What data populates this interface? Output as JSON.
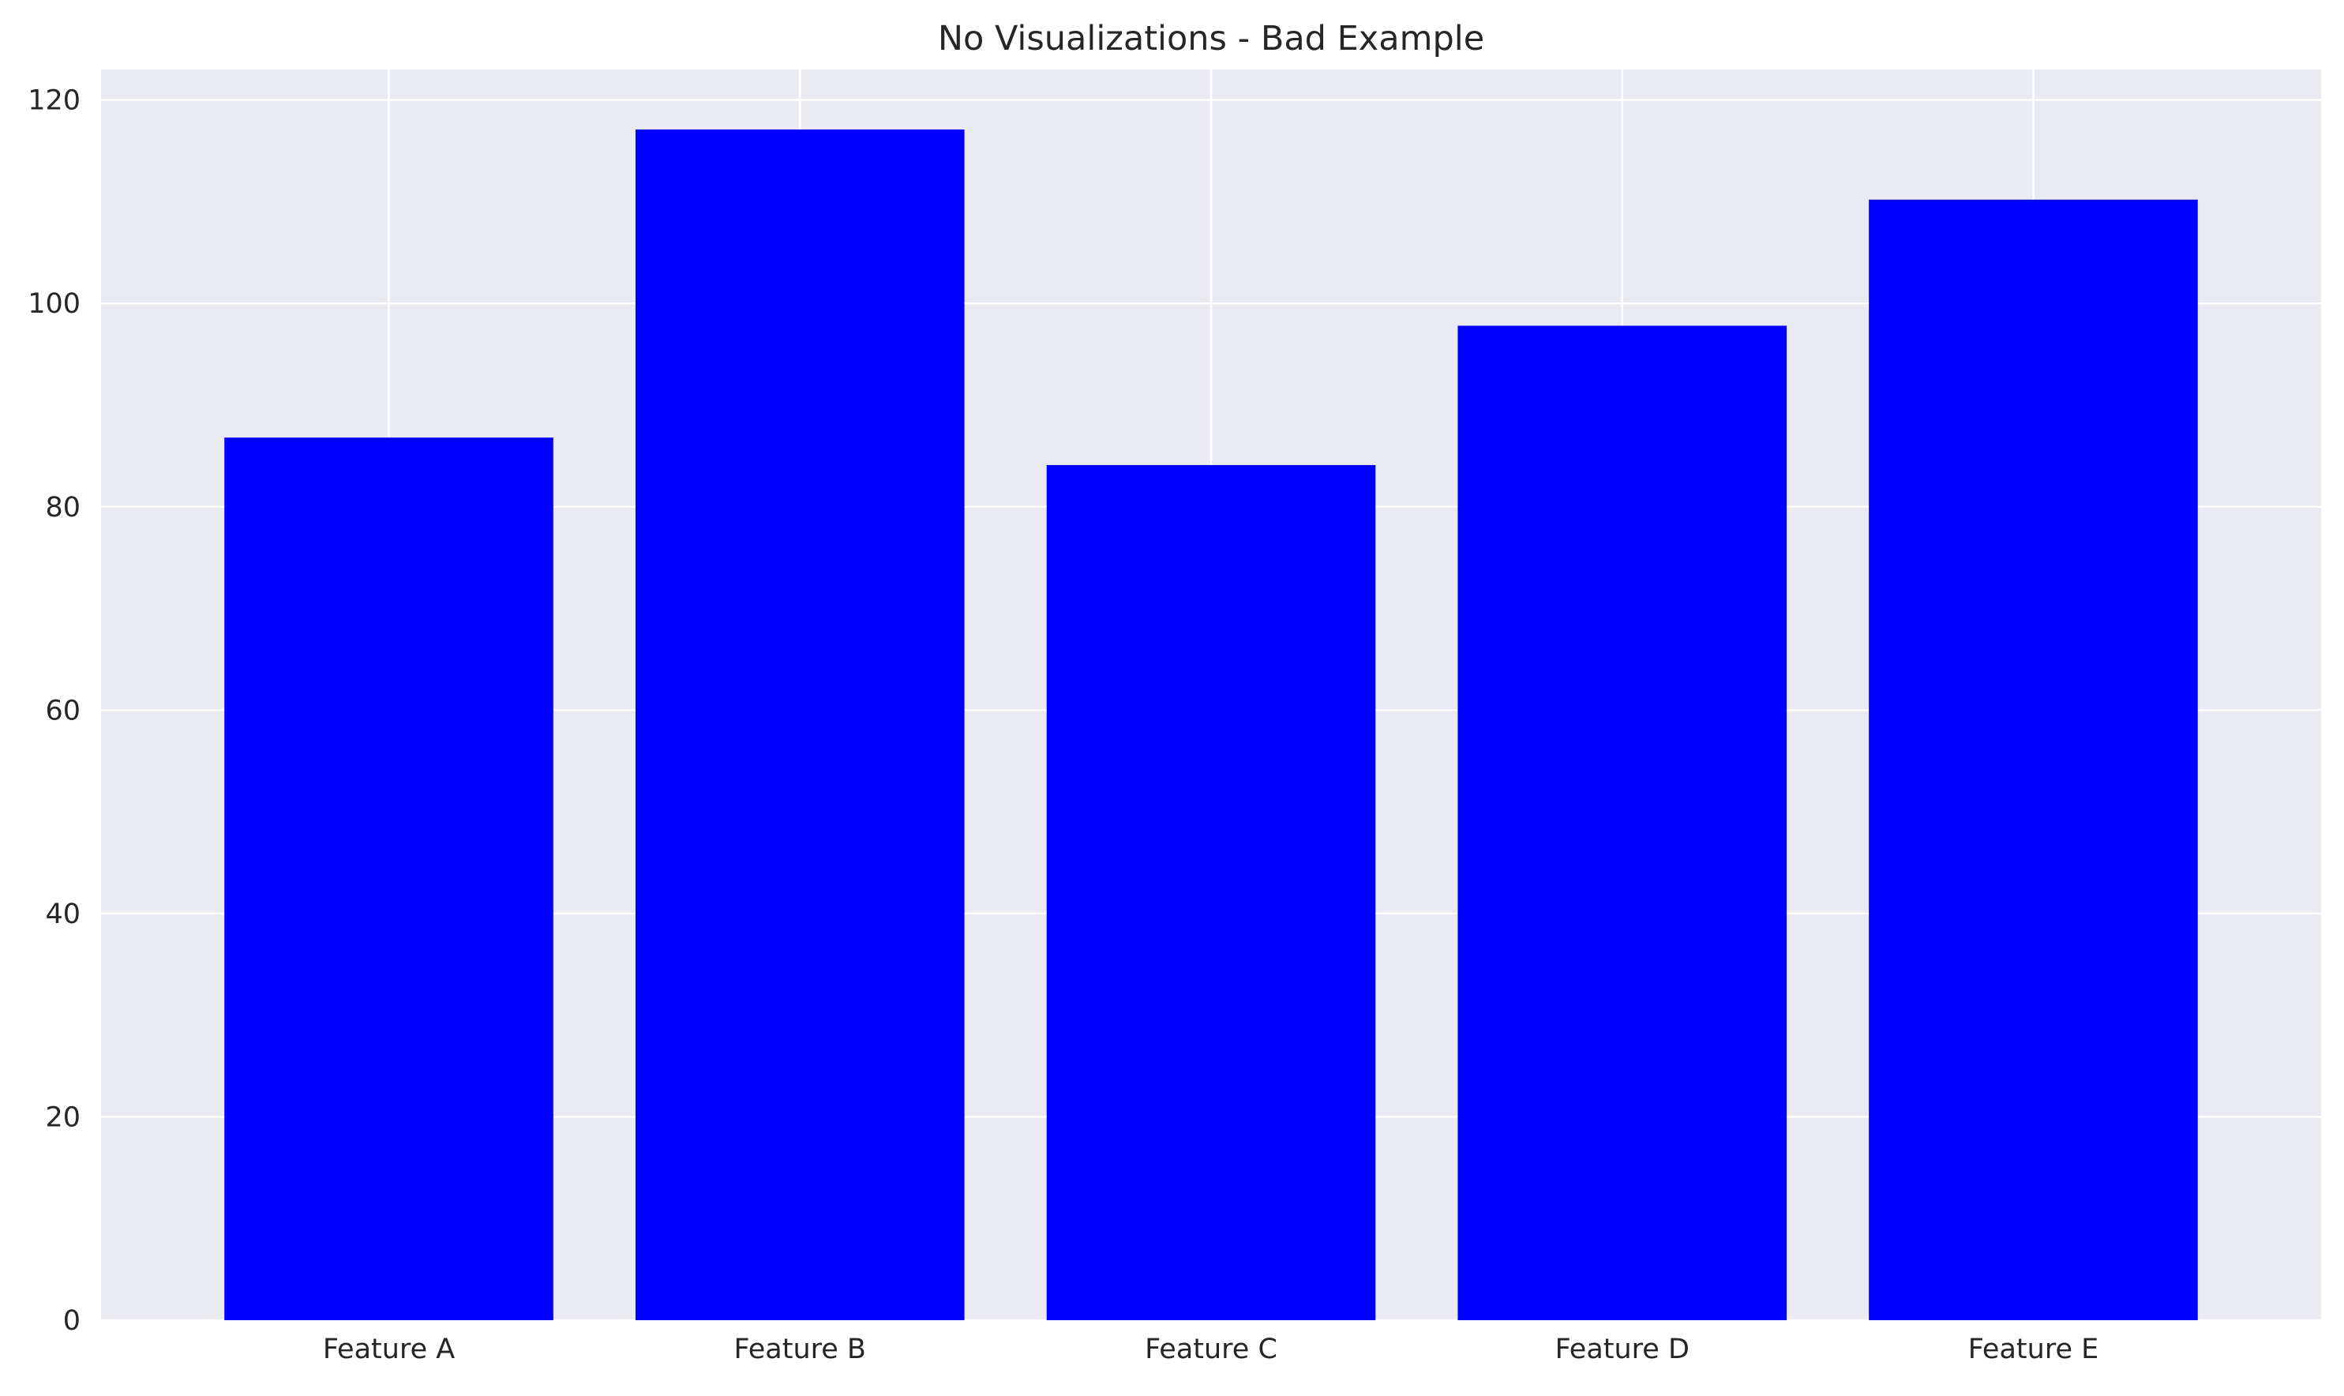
{
  "chart_data": {
    "type": "bar",
    "title": "No Visualizations - Bad Example",
    "xlabel": "",
    "ylabel": "",
    "categories": [
      "Feature A",
      "Feature B",
      "Feature C",
      "Feature D",
      "Feature E"
    ],
    "values": [
      86.8,
      117.1,
      84.1,
      97.8,
      110.2
    ],
    "ylim": [
      0,
      123
    ],
    "yticks": [
      0,
      20,
      40,
      60,
      80,
      100,
      120
    ],
    "grid": true,
    "colors": {
      "bar": "#0000ff",
      "plot_background": "#eaeaf2",
      "grid": "#ffffff",
      "text": "#262626"
    }
  }
}
